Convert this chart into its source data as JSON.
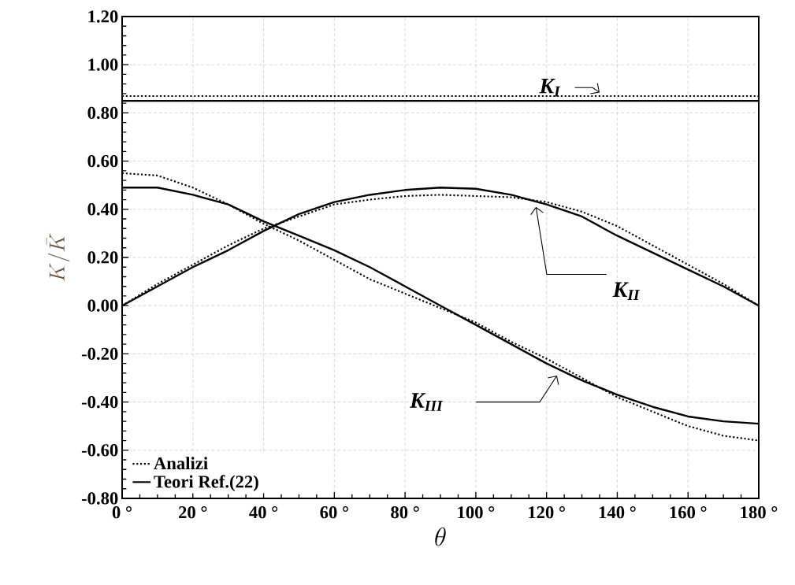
{
  "chart_data": {
    "type": "line",
    "xlabel": "\\theta",
    "ylabel": "K / \\bar{K}",
    "x": [
      0,
      10,
      20,
      30,
      40,
      50,
      60,
      70,
      80,
      90,
      100,
      110,
      120,
      130,
      140,
      150,
      160,
      170,
      180
    ],
    "series": [
      {
        "name": "Analizi",
        "color": "#000000",
        "line_style": "dotted",
        "values": [
          0.87,
          0.87,
          0.87,
          0.87,
          0.87,
          0.87,
          0.87,
          0.87,
          0.87,
          0.87,
          0.87,
          0.87,
          0.87,
          0.87,
          0.87,
          0.87,
          0.87,
          0.87,
          0.87
        ]
      },
      {
        "name": "Teori Ref.(22)",
        "color": "#000000",
        "line_style": "solid",
        "values": [
          0.85,
          0.85,
          0.85,
          0.85,
          0.85,
          0.85,
          0.85,
          0.85,
          0.85,
          0.85,
          0.85,
          0.85,
          0.85,
          0.85,
          0.85,
          0.85,
          0.85,
          0.85,
          0.85
        ]
      },
      {
        "color": "#000000",
        "line_style": "dotted",
        "values": [
          0,
          0.09,
          0.17,
          0.25,
          0.32,
          0.37,
          0.42,
          0.44,
          0.455,
          0.46,
          0.455,
          0.45,
          0.43,
          0.39,
          0.33,
          0.25,
          0.17,
          0.09,
          0
        ]
      },
      {
        "color": "#000000",
        "line_style": "solid",
        "values": [
          0,
          0.08,
          0.16,
          0.23,
          0.31,
          0.38,
          0.43,
          0.46,
          0.48,
          0.49,
          0.485,
          0.46,
          0.42,
          0.37,
          0.29,
          0.22,
          0.15,
          0.08,
          0
        ]
      },
      {
        "color": "#000000",
        "line_style": "dotted",
        "values": [
          0.55,
          0.54,
          0.49,
          0.42,
          0.34,
          0.27,
          0.19,
          0.11,
          0.05,
          -0.01,
          -0.07,
          -0.15,
          -0.22,
          -0.3,
          -0.38,
          -0.44,
          -0.5,
          -0.54,
          -0.56
        ]
      },
      {
        "color": "#000000",
        "line_style": "solid",
        "values": [
          0.49,
          0.49,
          0.46,
          0.42,
          0.35,
          0.29,
          0.23,
          0.16,
          0.08,
          0,
          -0.08,
          -0.16,
          -0.24,
          -0.31,
          -0.37,
          -0.42,
          -0.46,
          -0.48,
          -0.49
        ]
      }
    ],
    "annotations": [
      "K$_{I}$",
      "K$_{II}$",
      "K$_{III}$"
    ],
    "xlim": [
      0,
      180
    ],
    "xticks": [
      {
        "value": 0,
        "label": "0 °"
      },
      {
        "value": 20,
        "label": "20 °"
      },
      {
        "value": 40,
        "label": "40 °"
      },
      {
        "value": 60,
        "label": "60 °"
      },
      {
        "value": 80,
        "label": "80 °"
      },
      {
        "value": 100,
        "label": "100 °"
      },
      {
        "value": 120,
        "label": "120 °"
      },
      {
        "value": 140,
        "label": "140 °"
      },
      {
        "value": 160,
        "label": "160 °"
      },
      {
        "value": 180,
        "label": "180 °"
      }
    ],
    "ylim": [
      -0.8,
      1.2
    ],
    "yticks": [
      {
        "value": -0.8,
        "label": "-0.80"
      },
      {
        "value": -0.6,
        "label": "-0.60"
      },
      {
        "value": -0.4,
        "label": "-0.40"
      },
      {
        "value": -0.2,
        "label": "-0.20"
      },
      {
        "value": 0,
        "label": "0.00"
      },
      {
        "value": 0.2,
        "label": "0.20"
      },
      {
        "value": 0.4,
        "label": "0.40"
      },
      {
        "value": 0.6,
        "label": "0.60"
      },
      {
        "value": 0.8,
        "label": "0.80"
      },
      {
        "value": 1.0,
        "label": "1.00"
      },
      {
        "value": 1.2,
        "label": "1.20"
      }
    ],
    "grid": true,
    "legend": "bottom left",
    "marker": "none"
  }
}
